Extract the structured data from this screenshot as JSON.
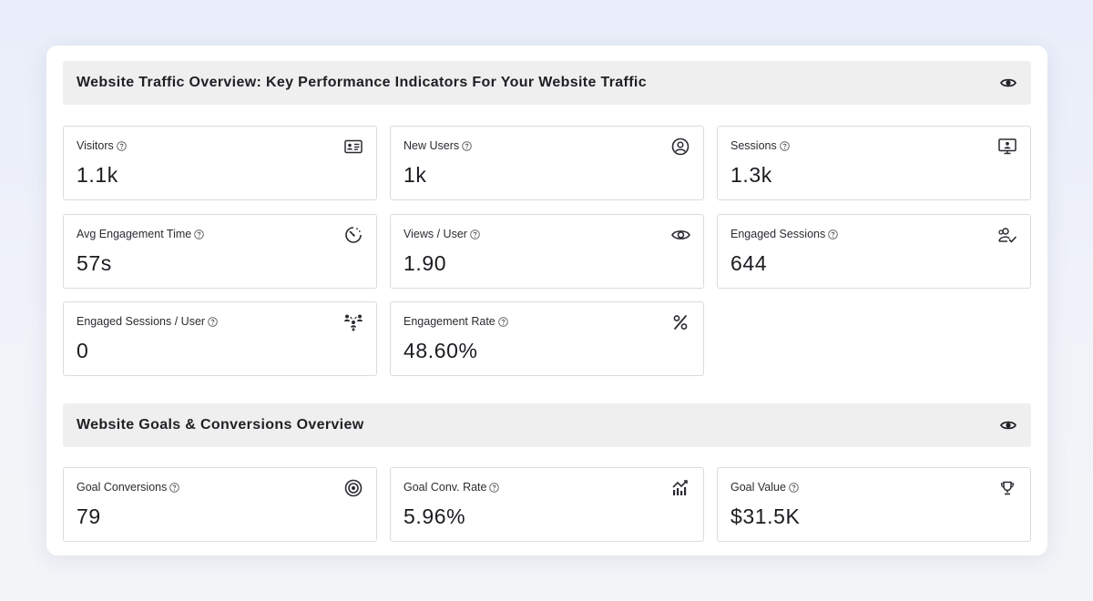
{
  "traffic_section": {
    "title": "Website Traffic Overview: Key Performance Indicators For Your Website Traffic",
    "header_icon": "eye-icon",
    "cards": [
      {
        "label": "Visitors",
        "value": "1.1k",
        "icon": "id-card-icon"
      },
      {
        "label": "New Users",
        "value": "1k",
        "icon": "user-circle-icon"
      },
      {
        "label": "Sessions",
        "value": "1.3k",
        "icon": "monitor-user-icon"
      },
      {
        "label": "Avg Engagement Time",
        "value": "57s",
        "icon": "timer-icon"
      },
      {
        "label": "Views / User",
        "value": "1.90",
        "icon": "eye-icon"
      },
      {
        "label": "Engaged Sessions",
        "value": "644",
        "icon": "users-check-icon"
      },
      {
        "label": "Engaged Sessions / User",
        "value": "0",
        "icon": "users-network-icon"
      },
      {
        "label": "Engagement Rate",
        "value": "48.60%",
        "icon": "percent-icon"
      }
    ]
  },
  "goals_section": {
    "title": "Website Goals & Conversions Overview",
    "header_icon": "eye-icon",
    "cards": [
      {
        "label": "Goal Conversions",
        "value": "79",
        "icon": "target-icon"
      },
      {
        "label": "Goal Conv. Rate",
        "value": "5.96%",
        "icon": "chart-up-icon"
      },
      {
        "label": "Goal Value",
        "value": "$31.5K",
        "icon": "trophy-icon"
      }
    ]
  },
  "colors": {
    "page_background": "#e9eefa",
    "panel_background": "#ffffff",
    "header_background": "#f0eff0",
    "card_border": "#dcdcdf",
    "text": "#1f2126"
  }
}
